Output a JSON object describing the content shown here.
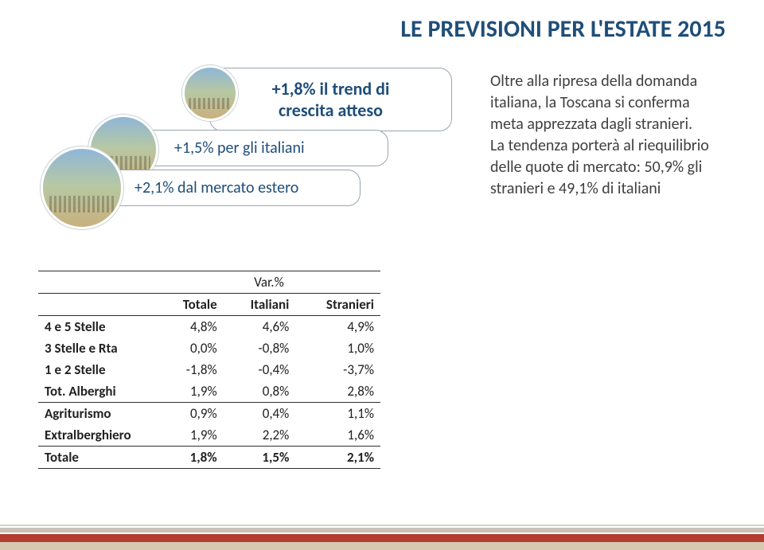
{
  "title": "LE PREVISIONI PER L'ESTATE 2015",
  "callouts": {
    "c1_l1": "+1,8% il trend di",
    "c1_l2": "crescita atteso",
    "c2": "+1,5% per gli italiani",
    "c3": "+2,1% dal mercato estero"
  },
  "right_text": "Oltre alla ripresa della domanda italiana, la Toscana si conferma meta apprezzata dagli stranieri.",
  "right_text2": "La tendenza porterà al riequilibrio delle quote di mercato: 50,9% gli stranieri e 49,1% di italiani",
  "table": {
    "header_group": "Var.%",
    "columns": [
      "Totale",
      "Italiani",
      "Stranieri"
    ],
    "rows": [
      {
        "label": "4 e 5 Stelle",
        "v": [
          "4,8%",
          "4,6%",
          "4,9%"
        ]
      },
      {
        "label": "3 Stelle e Rta",
        "v": [
          "0,0%",
          "-0,8%",
          "1,0%"
        ]
      },
      {
        "label": "1 e 2 Stelle",
        "v": [
          "-1,8%",
          "-0,4%",
          "-3,7%"
        ]
      },
      {
        "label": "Tot. Alberghi",
        "v": [
          "1,9%",
          "0,8%",
          "2,8%"
        ],
        "sep_after": true
      },
      {
        "label": "Agriturismo",
        "v": [
          "0,9%",
          "0,4%",
          "1,1%"
        ]
      },
      {
        "label": "Extralberghiero",
        "v": [
          "1,9%",
          "2,2%",
          "1,6%"
        ],
        "sep_after": true
      },
      {
        "label": "Totale",
        "v": [
          "1,8%",
          "1,5%",
          "2,1%"
        ],
        "total": true
      }
    ]
  },
  "colors": {
    "title": "#1f4e79",
    "callout_text": "#1f4e79",
    "callout_border": "#9aa5ae",
    "body_text": "#404040",
    "table_border": "#2e2e2e",
    "footer_red": "#b33d2f",
    "footer_sand": "#d6c9b0"
  }
}
